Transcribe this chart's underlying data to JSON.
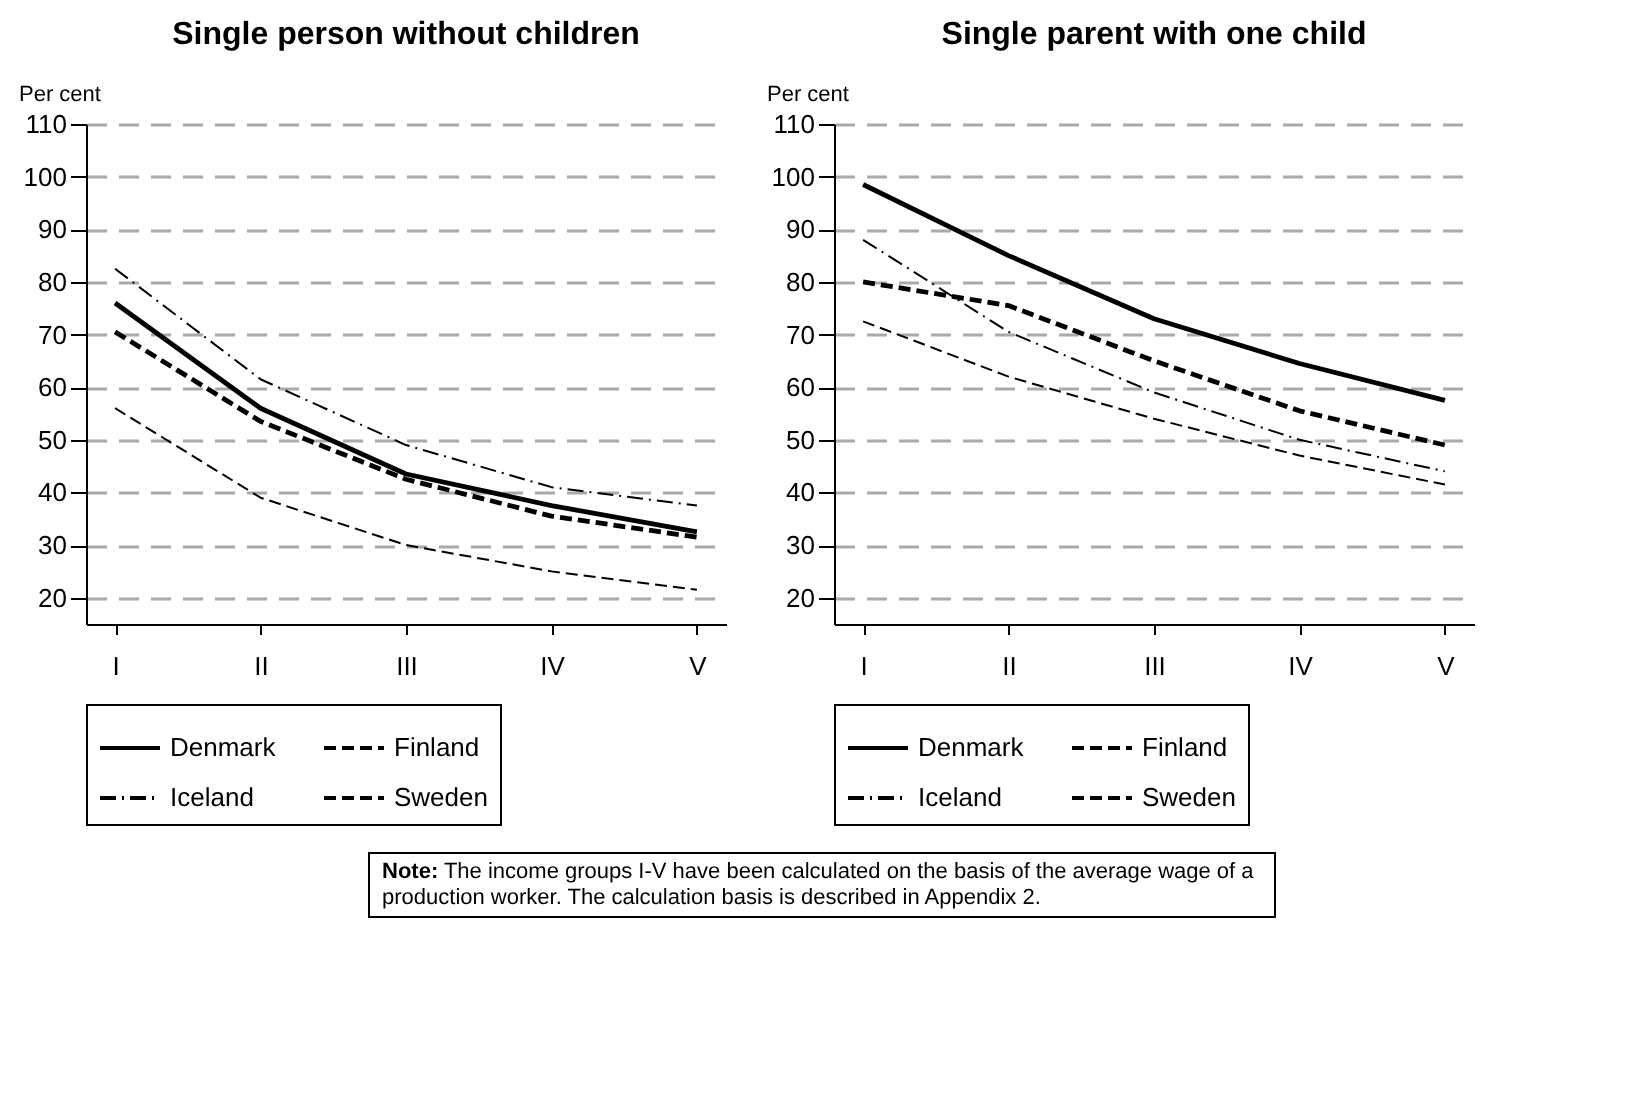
{
  "chart_data": [
    {
      "type": "line",
      "title": "Single person without children",
      "ylabel": "Per cent",
      "categories": [
        "I",
        "II",
        "III",
        "IV",
        "V"
      ],
      "ylim": [
        15,
        110
      ],
      "yticks": [
        20,
        30,
        40,
        50,
        60,
        70,
        80,
        90,
        100,
        110
      ],
      "grid": "y",
      "legend": "bottom",
      "marker": "none",
      "series": [
        {
          "name": "Denmark",
          "color": "#000000",
          "line_style": "solid",
          "values": [
            76,
            56,
            43.5,
            37.5,
            32.5
          ]
        },
        {
          "name": "Finland",
          "color": "#000000",
          "line_style": "dashed",
          "values": [
            70.5,
            53.5,
            42.5,
            35.5,
            31.5
          ]
        },
        {
          "name": "Iceland",
          "color": "#000000",
          "line_style": "dashdot",
          "values": [
            82.5,
            61.5,
            49,
            41,
            37.5
          ]
        },
        {
          "name": "Sweden",
          "color": "#000000",
          "line_style": "dashed",
          "values": [
            56,
            39,
            30,
            25,
            21.5
          ]
        }
      ]
    },
    {
      "type": "line",
      "title": "Single parent with one child",
      "ylabel": "Per cent",
      "categories": [
        "I",
        "II",
        "III",
        "IV",
        "V"
      ],
      "ylim": [
        15,
        110
      ],
      "yticks": [
        20,
        30,
        40,
        50,
        60,
        70,
        80,
        90,
        100,
        110
      ],
      "grid": "y",
      "legend": "bottom",
      "marker": "none",
      "annotations": [
        "Note: The income groups I-V have been calculated on the basis of the average wage of a production worker. The calculation basis is described in Appendix 2."
      ],
      "series": [
        {
          "name": "Denmark",
          "color": "#000000",
          "line_style": "solid",
          "values": [
            98.5,
            85,
            73,
            64.5,
            57.5
          ]
        },
        {
          "name": "Finland",
          "color": "#000000",
          "line_style": "dashed",
          "values": [
            80,
            75.5,
            65,
            55.5,
            49
          ]
        },
        {
          "name": "Iceland",
          "color": "#000000",
          "line_style": "dashdot",
          "values": [
            88,
            70.5,
            59,
            50,
            44
          ]
        },
        {
          "name": "Sweden",
          "color": "#000000",
          "line_style": "dashed",
          "values": [
            72.5,
            62,
            54,
            47,
            41.5
          ]
        }
      ]
    }
  ]
}
